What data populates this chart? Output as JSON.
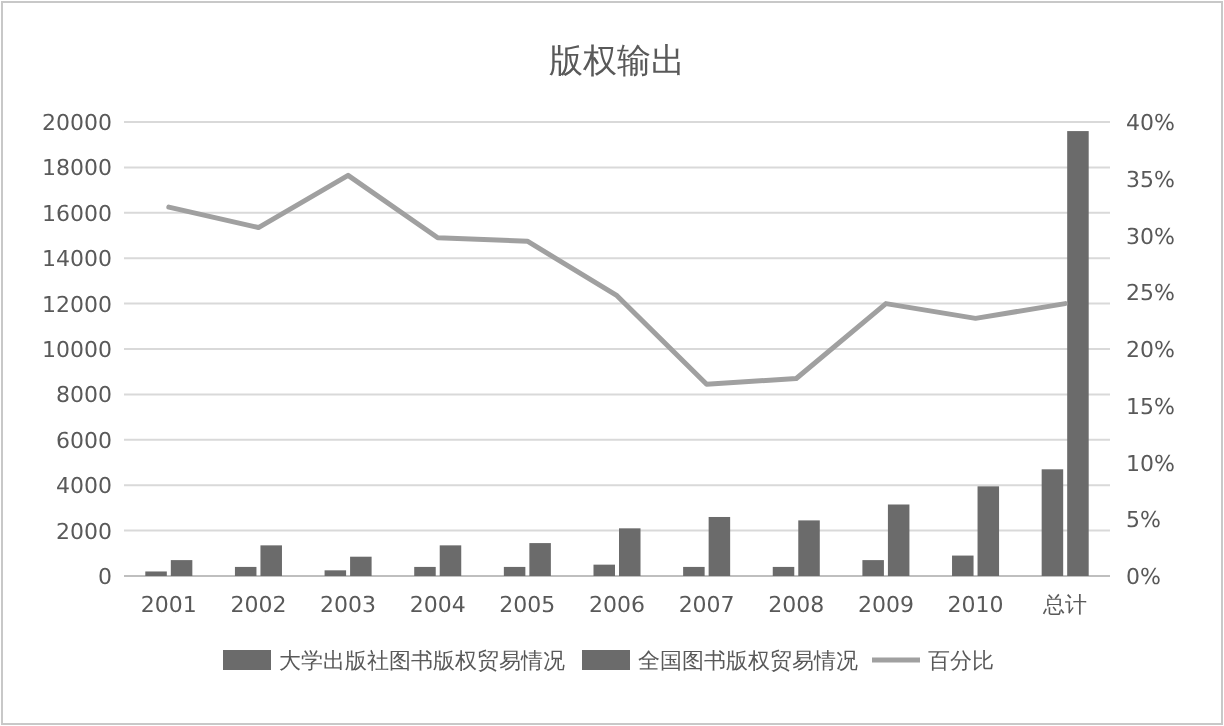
{
  "chart_data": {
    "type": "bar",
    "title": "版权输出",
    "categories": [
      "2001",
      "2002",
      "2003",
      "2004",
      "2005",
      "2006",
      "2007",
      "2008",
      "2009",
      "2010",
      "总计"
    ],
    "series": [
      {
        "name": "大学出版社图书版权贸易情况",
        "color": "#6b6b6b",
        "values": [
          200,
          400,
          250,
          400,
          400,
          500,
          400,
          400,
          700,
          900,
          4700
        ]
      },
      {
        "name": "全国图书版权贸易情况",
        "color": "#6b6b6b",
        "values": [
          700,
          1350,
          850,
          1350,
          1450,
          2100,
          2600,
          2450,
          3150,
          3950,
          19600
        ]
      },
      {
        "name": "百分比",
        "type": "line",
        "axis": "y2",
        "color": "#a0a0a0",
        "values": [
          32.5,
          30.7,
          35.3,
          29.8,
          29.5,
          24.7,
          16.9,
          17.4,
          24.0,
          22.7,
          24.0
        ]
      }
    ],
    "ylim": [
      0,
      20000
    ],
    "yticks": [
      0,
      2000,
      4000,
      6000,
      8000,
      10000,
      12000,
      14000,
      16000,
      18000,
      20000
    ],
    "y2lim": [
      0,
      40
    ],
    "y2ticks": [
      {
        "value": 0,
        "label": "0%"
      },
      {
        "value": 5,
        "label": "5%"
      },
      {
        "value": 10,
        "label": "10%"
      },
      {
        "value": 15,
        "label": "15%"
      },
      {
        "value": 20,
        "label": "20%"
      },
      {
        "value": 25,
        "label": "25%"
      },
      {
        "value": 30,
        "label": "30%"
      },
      {
        "value": 35,
        "label": "35%"
      },
      {
        "value": 40,
        "label": "40%"
      }
    ],
    "grid": "y",
    "legend": "bottom"
  }
}
